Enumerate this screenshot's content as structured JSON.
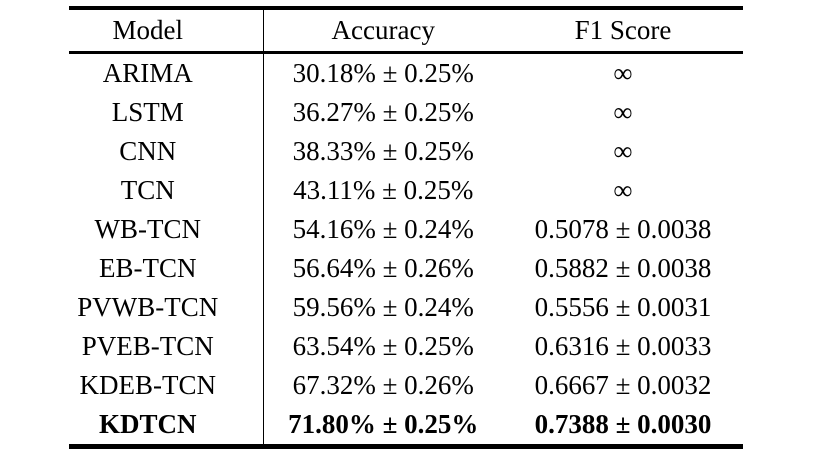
{
  "colors": {
    "background": "#ffffff",
    "text": "#000000",
    "rule": "#000000"
  },
  "table": {
    "headers": [
      "Model",
      "Accuracy",
      "F1 Score"
    ],
    "rows": [
      {
        "model": "ARIMA",
        "accuracy": "30.18% ± 0.25%",
        "f1": "∞",
        "bold": false
      },
      {
        "model": "LSTM",
        "accuracy": "36.27% ± 0.25%",
        "f1": "∞",
        "bold": false
      },
      {
        "model": "CNN",
        "accuracy": "38.33% ± 0.25%",
        "f1": "∞",
        "bold": false
      },
      {
        "model": "TCN",
        "accuracy": "43.11% ± 0.25%",
        "f1": "∞",
        "bold": false
      },
      {
        "model": "WB-TCN",
        "accuracy": "54.16% ± 0.24%",
        "f1": "0.5078 ± 0.0038",
        "bold": false
      },
      {
        "model": "EB-TCN",
        "accuracy": "56.64% ± 0.26%",
        "f1": "0.5882 ± 0.0038",
        "bold": false
      },
      {
        "model": "PVWB-TCN",
        "accuracy": "59.56% ± 0.24%",
        "f1": "0.5556 ± 0.0031",
        "bold": false
      },
      {
        "model": "PVEB-TCN",
        "accuracy": "63.54% ± 0.25%",
        "f1": "0.6316 ± 0.0033",
        "bold": false
      },
      {
        "model": "KDEB-TCN",
        "accuracy": "67.32% ± 0.26%",
        "f1": "0.6667 ± 0.0032",
        "bold": false
      },
      {
        "model": "KDTCN",
        "accuracy": "71.80% ± 0.25%",
        "f1": "0.7388 ± 0.0030",
        "bold": true
      }
    ]
  }
}
